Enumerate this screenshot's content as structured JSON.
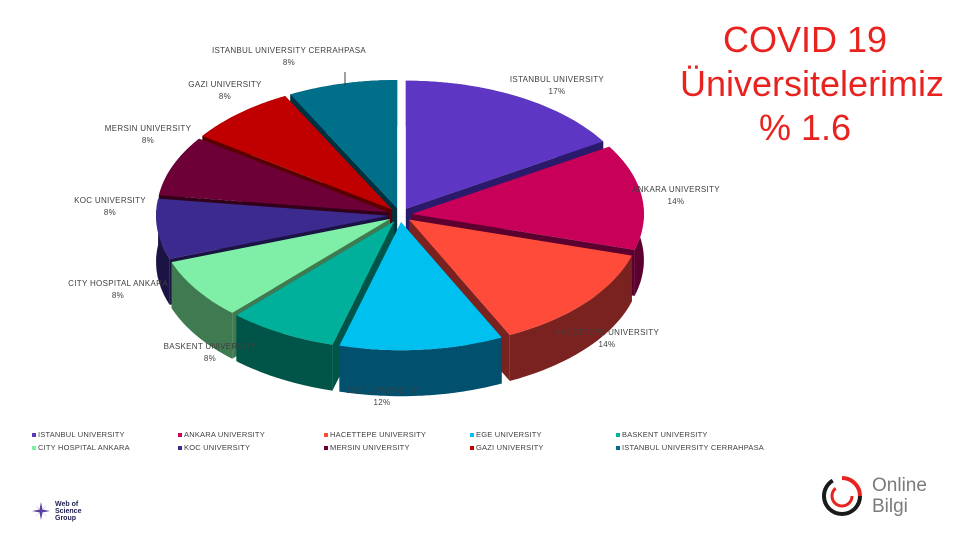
{
  "title": {
    "line1": "COVID 19",
    "line2": "Üniversitelerimiz",
    "line3": "% 1.6"
  },
  "chart_data": {
    "type": "pie",
    "style": "3d-exploded",
    "legend_position": "bottom",
    "slices": [
      {
        "label": "ISTANBUL UNIVERSITY",
        "pct_label": "17%",
        "value": 17,
        "color": "#5e36c4",
        "side": "#2b1a6b"
      },
      {
        "label": "ANKARA UNIVERSITY",
        "pct_label": "14%",
        "value": 14,
        "color": "#c8005a",
        "side": "#5c0030"
      },
      {
        "label": "HACETTEPE UNIVERSITY",
        "pct_label": "14%",
        "value": 14,
        "color": "#ff4b3a",
        "side": "#7a2220"
      },
      {
        "label": "EGE UNIVERSITY",
        "pct_label": "12%",
        "value": 12,
        "color": "#00c0ef",
        "side": "#00506e"
      },
      {
        "label": "BASKENT UNIVERSITY",
        "pct_label": "8%",
        "value": 8,
        "color": "#00b09a",
        "side": "#005548"
      },
      {
        "label": "CITY HOSPITAL ANKARA",
        "pct_label": "8%",
        "value": 8,
        "color": "#7fefa8",
        "side": "#3f7a50"
      },
      {
        "label": "KOC UNIVERSITY",
        "pct_label": "8%",
        "value": 8,
        "color": "#3d2a8e",
        "side": "#1c1345"
      },
      {
        "label": "MERSIN UNIVERSITY",
        "pct_label": "8%",
        "value": 8,
        "color": "#6e0038",
        "side": "#33001a"
      },
      {
        "label": "GAZI UNIVERSITY",
        "pct_label": "8%",
        "value": 8,
        "color": "#c00000",
        "side": "#5a0000"
      },
      {
        "label": "ISTANBUL UNIVERSITY CERRAHPASA",
        "pct_label": "8%",
        "value": 8,
        "color": "#006f8a",
        "side": "#003140"
      }
    ]
  },
  "logos": {
    "web_of_science": [
      "Web of",
      "Science",
      "Group"
    ],
    "online_bilgi": [
      "Online",
      "Bilgi"
    ]
  }
}
